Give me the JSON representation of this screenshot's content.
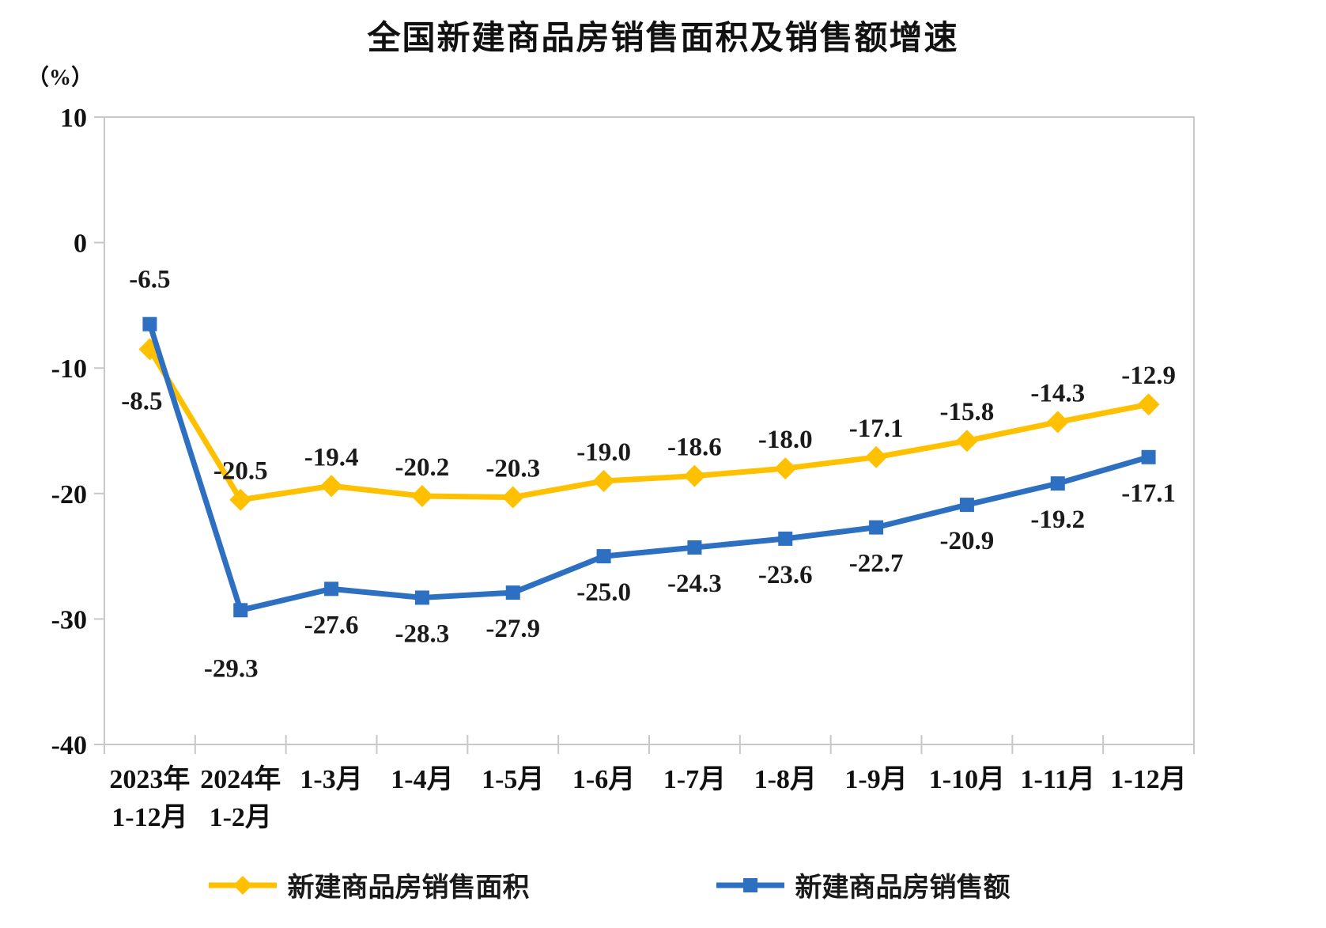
{
  "title": {
    "text": "全国新建商品房销售面积及销售额增速"
  },
  "y_axis_unit_label": "（%）",
  "chart_data": {
    "type": "line",
    "title": "全国新建商品房销售面积及销售额增速",
    "ylabel": "（%）",
    "ylim": [
      -40,
      10
    ],
    "y_ticks": [
      10,
      0,
      -10,
      -20,
      -30,
      -40
    ],
    "grid": false,
    "legend_position": "bottom",
    "categories": [
      [
        "2023年",
        "1-12月"
      ],
      [
        "2024年",
        "1-2月"
      ],
      [
        "1-3月"
      ],
      [
        "1-4月"
      ],
      [
        "1-5月"
      ],
      [
        "1-6月"
      ],
      [
        "1-7月"
      ],
      [
        "1-8月"
      ],
      [
        "1-9月"
      ],
      [
        "1-10月"
      ],
      [
        "1-11月"
      ],
      [
        "1-12月"
      ]
    ],
    "series": [
      {
        "name": "新建商品房销售面积",
        "color": "#FFC000",
        "marker": "diamond",
        "values": [
          -8.5,
          -20.5,
          -19.4,
          -20.2,
          -20.3,
          -19.0,
          -18.6,
          -18.0,
          -17.1,
          -15.8,
          -14.3,
          -12.9
        ],
        "label_default": "above",
        "label_exceptions": {
          "0": {
            "pos": "below",
            "dx": -10,
            "dy": 76
          }
        }
      },
      {
        "name": "新建商品房销售额",
        "color": "#2D6FC0",
        "marker": "square",
        "values": [
          -6.5,
          -29.3,
          -27.6,
          -28.3,
          -27.9,
          -25.0,
          -24.3,
          -23.6,
          -22.7,
          -20.9,
          -19.2,
          -17.1
        ],
        "label_default": "below",
        "label_exceptions": {
          "0": {
            "pos": "above",
            "dx": 0,
            "dy": -46
          },
          "1": {
            "pos": "below",
            "dx": -12,
            "dy": 84
          }
        }
      }
    ]
  },
  "colors": {
    "axis": "#c8c8c8",
    "tick_text": "#111111",
    "data_label_text": "#1a1a1a"
  }
}
